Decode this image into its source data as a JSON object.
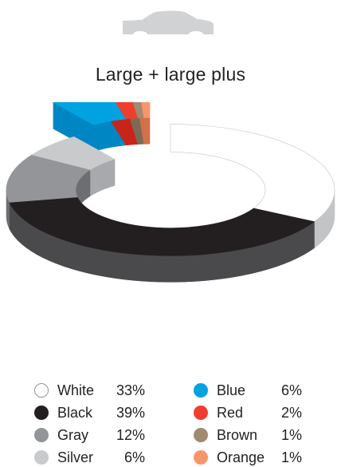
{
  "icon": "car-silhouette-icon",
  "chart_data": {
    "type": "pie",
    "subtype": "3d-donut",
    "title": "Large + large plus",
    "unit": "%",
    "categories": [
      "White",
      "Black",
      "Gray",
      "Silver",
      "Blue",
      "Red",
      "Brown",
      "Orange"
    ],
    "values": [
      33,
      39,
      12,
      6,
      6,
      2,
      1,
      1
    ],
    "value_labels": [
      "33%",
      "39%",
      "12%",
      "6%",
      "6%",
      "2%",
      "1%",
      "1%"
    ],
    "colors": [
      "#ffffff",
      "#231f20",
      "#939598",
      "#c9cacc",
      "#00a3e0",
      "#ef3e2d",
      "#a08a70",
      "#f7966b"
    ],
    "side_colors": [
      "#c3c4c6",
      "#4a4a4c",
      "#6d6e71",
      "#a7a9ac",
      "#0086c3",
      "#c8241a",
      "#7c6a55",
      "#d2704a"
    ],
    "exploded": [
      "Blue",
      "Red",
      "Brown",
      "Orange"
    ],
    "legend_position": "bottom"
  }
}
